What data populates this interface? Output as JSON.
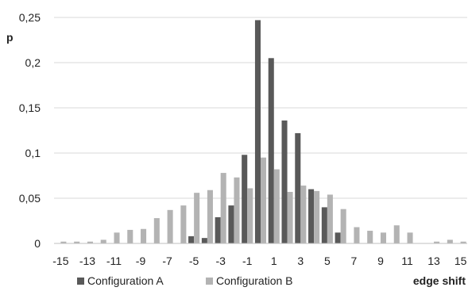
{
  "chart_data": {
    "type": "bar",
    "ylabel": "p",
    "xlabel": "edge shift",
    "ylim": [
      0,
      0.25
    ],
    "y_ticks": [
      "0",
      "0,05",
      "0,1",
      "0,15",
      "0,2",
      "0,25"
    ],
    "x_tick_labels": [
      "-15",
      "-13",
      "-11",
      "-9",
      "-7",
      "-5",
      "-3",
      "-1",
      "1",
      "3",
      "5",
      "7",
      "9",
      "11",
      "13",
      "15"
    ],
    "grid": "horizontal",
    "legend_position": "bottom",
    "categories": [
      -15,
      -14,
      -13,
      -12,
      -11,
      -10,
      -9,
      -8,
      -7,
      -6,
      -5,
      -4,
      -3,
      -2,
      -1,
      0,
      1,
      2,
      3,
      4,
      5,
      6,
      7,
      8,
      9,
      10,
      11,
      12,
      13,
      14,
      15
    ],
    "series": [
      {
        "name": "Configuration A",
        "color": "#595959",
        "values": [
          0,
          0,
          0,
          0,
          0,
          0,
          0,
          0,
          0,
          0,
          0.008,
          0.006,
          0.029,
          0.042,
          0.098,
          0.247,
          0.205,
          0.136,
          0.122,
          0.06,
          0.04,
          0.012,
          0,
          0,
          0,
          0,
          0,
          0,
          0,
          0,
          0
        ]
      },
      {
        "name": "Configuration B",
        "color": "#b3b3b3",
        "values": [
          0.002,
          0.002,
          0.002,
          0.004,
          0.012,
          0.015,
          0.016,
          0.028,
          0.037,
          0.042,
          0.056,
          0.059,
          0.078,
          0.073,
          0.061,
          0.095,
          0.082,
          0.057,
          0.064,
          0.058,
          0.054,
          0.038,
          0.018,
          0.014,
          0.012,
          0.02,
          0.012,
          0,
          0.002,
          0.004,
          0.002
        ]
      }
    ]
  }
}
